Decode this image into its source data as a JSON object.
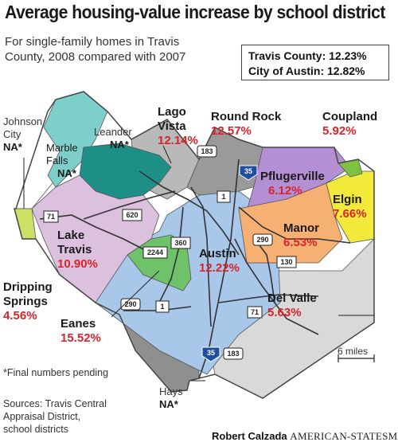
{
  "title": "Average housing-value increase by school district",
  "subtitle": "For single-family homes in  Travis County, 2008 compared with 2007",
  "summary": {
    "travis_county": "Travis County: 12.23%",
    "city_of_austin": "City of Austin: 12.82%"
  },
  "districts": {
    "johnson_city": {
      "name_line1": "Johnson",
      "name_line2": "City",
      "value": "NA*",
      "color": "#ffffff"
    },
    "marble_falls": {
      "name_line1": "Marble",
      "name_line2": "Falls",
      "value": "NA*",
      "color": "#7ecfc9"
    },
    "leander": {
      "name": "Leander",
      "value": "NA*",
      "color": "#1d8f86"
    },
    "lago_vista": {
      "name_line1": "Lago",
      "name_line2": "Vista",
      "value": "12.14%",
      "color": "#b9b9b9"
    },
    "round_rock": {
      "name": "Round Rock",
      "value": "12.57%",
      "color": "#9a9a9a"
    },
    "coupland": {
      "name": "Coupland",
      "value": "5.92%",
      "color": "#7ec242"
    },
    "pflugerville": {
      "name": "Pflugerville",
      "value": "6.12%",
      "color": "#b58fd3"
    },
    "elgin": {
      "name": "Elgin",
      "value": "7.66%",
      "color": "#f2ea3a"
    },
    "manor": {
      "name": "Manor",
      "value": "6.53%",
      "color": "#f6b074"
    },
    "lake_travis": {
      "name_line1": "Lake",
      "name_line2": "Travis",
      "value": "10.90%",
      "color": "#dcc1de"
    },
    "dripping_springs": {
      "name_line1": "Dripping",
      "name_line2": "Springs",
      "value": "4.56%",
      "color": "#cce067"
    },
    "austin": {
      "name": "Austin",
      "value": "12.22%",
      "color": "#a9c7e8"
    },
    "eanes": {
      "name": "Eanes",
      "value": "15.52%",
      "color": "#6ec26a"
    },
    "del_valle": {
      "name": "Del Valle",
      "value": "5.63%",
      "color": "#d9d9d9"
    },
    "hays": {
      "name": "Hays",
      "value": "NA*",
      "color": "#8f8f8f"
    }
  },
  "highways": {
    "i35_north": "35",
    "i35_south": "35",
    "us183_north": "183",
    "us183_south": "183",
    "sh1_north": "1",
    "sh1_south": "1",
    "rm620": "620",
    "sh71_west": "71",
    "sh71_east": "71",
    "rm2244": "2244",
    "loop360": "360",
    "us290_west": "290",
    "us290_east": "290",
    "sh130": "130"
  },
  "scale": "6 miles",
  "footnote": "*Final numbers pending",
  "sources": [
    "Sources: Travis Central",
    "Appraisal District,",
    "school districts"
  ],
  "credit": {
    "author": "Robert Calzada",
    "publication": "AMERICAN-STATESMAN"
  }
}
